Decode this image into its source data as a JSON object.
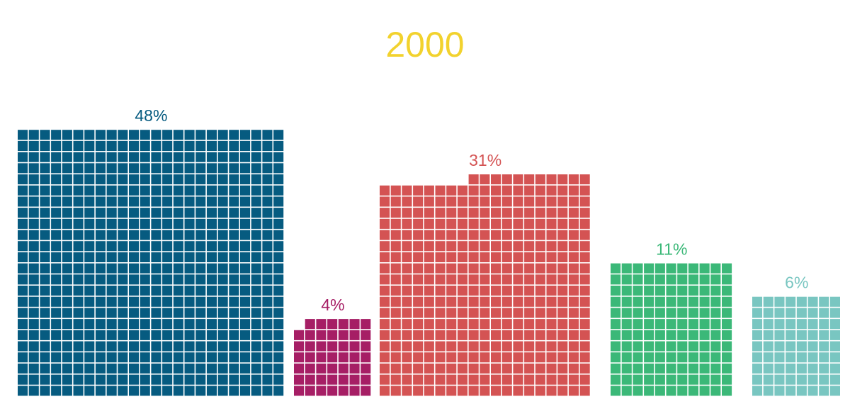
{
  "chart_data": {
    "type": "waffle",
    "title": "2000",
    "title_color": "#f2d22e",
    "unit": "%",
    "groups": [
      {
        "value": 48,
        "label": "48%",
        "color": "#065b80"
      },
      {
        "value": 4,
        "label": "4%",
        "color": "#a61e65"
      },
      {
        "value": 31,
        "label": "31%",
        "color": "#d45353"
      },
      {
        "value": 11,
        "label": "11%",
        "color": "#3bb878"
      },
      {
        "value": 6,
        "label": "6%",
        "color": "#79c6c1"
      }
    ]
  }
}
